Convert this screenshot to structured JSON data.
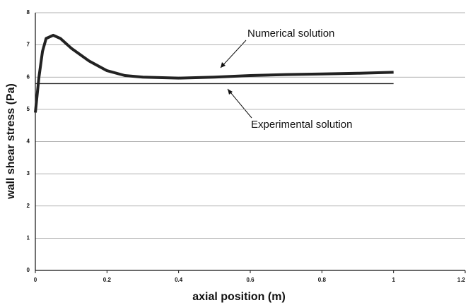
{
  "chart_data": {
    "type": "line",
    "xlabel": "axial position (m)",
    "ylabel": "wall shear stress (Pa)",
    "xlim": [
      0,
      1.2
    ],
    "xticks": [
      0,
      0.2,
      0.4,
      0.6,
      0.8,
      1,
      1.2
    ],
    "ylim": [
      0,
      8
    ],
    "yticks": [
      0,
      1,
      2,
      3,
      4,
      5,
      6,
      7,
      8
    ],
    "grid": true,
    "annotations": [
      "Numerical solution",
      "Experimental solution"
    ],
    "series": [
      {
        "name": "Numerical solution",
        "color": "#222222",
        "x": [
          0,
          0.01,
          0.02,
          0.03,
          0.05,
          0.07,
          0.1,
          0.15,
          0.2,
          0.25,
          0.3,
          0.4,
          0.5,
          0.6,
          0.7,
          0.8,
          0.9,
          1.0
        ],
        "values": [
          4.9,
          6.0,
          6.8,
          7.2,
          7.3,
          7.2,
          6.9,
          6.5,
          6.2,
          6.05,
          6.0,
          5.97,
          6.0,
          6.05,
          6.08,
          6.1,
          6.12,
          6.15
        ]
      },
      {
        "name": "Experimental solution",
        "color": "#222222",
        "x": [
          0,
          1.0
        ],
        "values": [
          5.8,
          5.8
        ]
      }
    ]
  }
}
